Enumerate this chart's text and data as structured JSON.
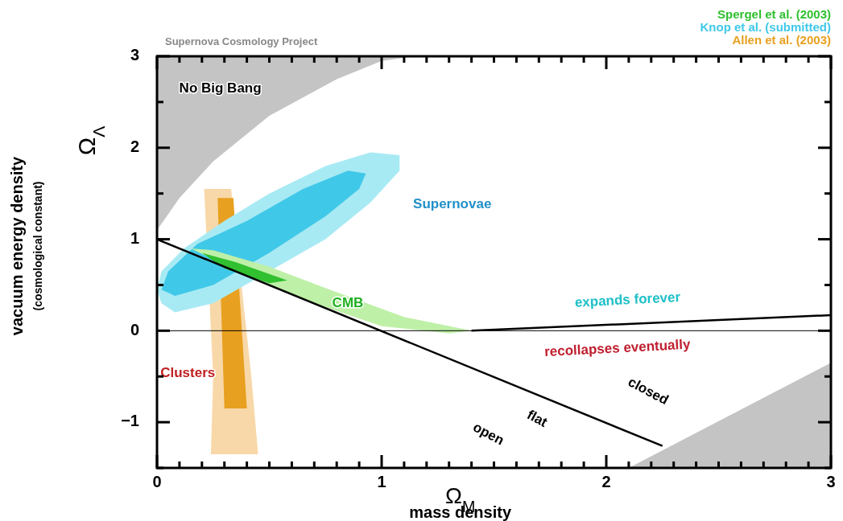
{
  "chart_data": {
    "type": "area",
    "title": "Supernova Cosmology Project",
    "xlabel": "Ω$_{M}$\nmass density",
    "ylabel": "vacuum energy density\n(cosmological constant)\nΩ$_{Λ}$",
    "xlim": [
      0,
      3
    ],
    "ylim": [
      -1.5,
      3
    ],
    "xticks": [
      0,
      {
        "value": 0.1,
        "label": null
      },
      {
        "value": 0.2,
        "label": null
      },
      {
        "value": 0.3,
        "label": null
      },
      {
        "value": 0.4,
        "label": null
      },
      {
        "value": 0.5,
        "label": null
      },
      {
        "value": 0.6,
        "label": null
      },
      {
        "value": 0.7,
        "label": null
      },
      {
        "value": 0.8,
        "label": null
      },
      {
        "value": 0.9,
        "label": null
      },
      1,
      {
        "value": 1.1,
        "label": null
      },
      {
        "value": 1.2,
        "label": null
      },
      {
        "value": 1.3,
        "label": null
      },
      {
        "value": 1.4,
        "label": null
      },
      {
        "value": 1.5,
        "label": null
      },
      {
        "value": 1.6,
        "label": null
      },
      {
        "value": 1.7,
        "label": null
      },
      {
        "value": 1.8,
        "label": null
      },
      {
        "value": 1.9,
        "label": null
      },
      2,
      {
        "value": 2.1,
        "label": null
      },
      {
        "value": 2.2,
        "label": null
      },
      {
        "value": 2.3,
        "label": null
      },
      {
        "value": 2.4,
        "label": null
      },
      {
        "value": 2.5,
        "label": null
      },
      {
        "value": 2.6,
        "label": null
      },
      {
        "value": 2.7,
        "label": null
      },
      {
        "value": 2.8,
        "label": null
      },
      {
        "value": 2.9,
        "label": null
      },
      3
    ],
    "yticks": [
      {
        "value": -1.5,
        "label": null
      },
      {
        "value": -1,
        "label": "−1"
      },
      {
        "value": -0.5,
        "label": null
      },
      0,
      {
        "value": 0.5,
        "label": null
      },
      1,
      {
        "value": 1.5,
        "label": null
      },
      2,
      {
        "value": 2.5,
        "label": null
      },
      3
    ],
    "legend": "top right",
    "series": [
      {
        "color": "#c4c4c4",
        "x": [
          0,
          0,
          0.1,
          0.25,
          0.5,
          0.8,
          1.0,
          1.15
        ],
        "values": [
          3,
          1.1,
          1.45,
          1.85,
          2.35,
          2.75,
          2.95,
          3
        ]
      },
      {
        "color": "#c4c4c4",
        "x": [
          2.1,
          3,
          3
        ],
        "values": [
          -1.5,
          -0.35,
          -1.5
        ]
      },
      {
        "color": "#f8d8a8",
        "x": [
          0.21,
          0.33,
          0.42,
          0.45,
          0.24,
          0.25
        ],
        "values": [
          1.55,
          1.55,
          -0.5,
          -1.35,
          -1.35,
          -0.5
        ]
      },
      {
        "name": "Allen et al. (2003)",
        "color": "#e8a020",
        "x": [
          0.27,
          0.34,
          0.4,
          0.3
        ],
        "values": [
          1.45,
          1.45,
          -0.85,
          -0.85
        ]
      },
      {
        "color": "#a8eaf4",
        "x": [
          0,
          0.02,
          0.08,
          0.25,
          0.75,
          0.95,
          1.08,
          1.08,
          0.95,
          0.75,
          0.5,
          0.3,
          0.12,
          0.02
        ],
        "values": [
          0.45,
          0.3,
          0.2,
          0.3,
          1.0,
          1.4,
          1.75,
          1.92,
          1.95,
          1.8,
          1.5,
          1.2,
          0.9,
          0.65
        ]
      },
      {
        "name": "Knop et al. (submitted)",
        "color": "#40c8e8",
        "x": [
          0.02,
          0.08,
          0.25,
          0.5,
          0.75,
          0.9,
          0.93,
          0.85,
          0.65,
          0.4,
          0.18,
          0.05
        ],
        "values": [
          0.45,
          0.38,
          0.5,
          0.85,
          1.25,
          1.55,
          1.72,
          1.75,
          1.55,
          1.2,
          0.95,
          0.65
        ]
      },
      {
        "color": "#bff0a8",
        "x": [
          0.15,
          0.25,
          0.5,
          0.8,
          1.1,
          1.4,
          1.3,
          1.0,
          0.7,
          0.45,
          0.3
        ],
        "values": [
          0.9,
          0.88,
          0.7,
          0.42,
          0.15,
          0.0,
          -0.03,
          0.05,
          0.3,
          0.55,
          0.72
        ]
      },
      {
        "name": "Spergel et al. (2003)",
        "color": "#30c030",
        "x": [
          0.2,
          0.35,
          0.58,
          0.5,
          0.3
        ],
        "values": [
          0.85,
          0.75,
          0.55,
          0.52,
          0.68
        ]
      },
      {
        "type": "line",
        "color": "#000000",
        "x": [
          0,
          2.25
        ],
        "values": [
          1,
          -1.26
        ]
      },
      {
        "type": "line",
        "color": "#000000",
        "x": [
          1.4,
          3
        ],
        "values": [
          0,
          0.17
        ]
      }
    ],
    "ref_lines": [
      {
        "axis": "y",
        "value": 0,
        "color": "#000000"
      }
    ],
    "annotations": [
      "No Big Bang",
      "Supernovae",
      "CMB",
      "Clusters",
      "expands forever",
      "recollapses eventually",
      "closed",
      "flat",
      "open"
    ]
  }
}
